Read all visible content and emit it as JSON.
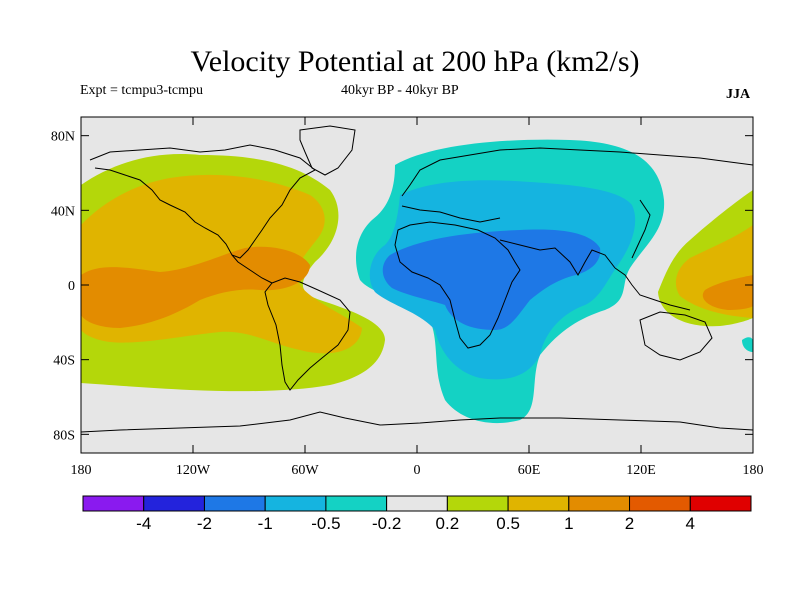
{
  "title": "Velocity Potential at 200 hPa (km2/s)",
  "subtitle_left": "Expt = tcmpu3-tcmpu",
  "subtitle_center": "40kyr BP - 40kyr BP",
  "season": "JJA",
  "map": {
    "lon_range": [
      -180,
      180
    ],
    "lat_range": [
      -90,
      90
    ],
    "background_color": "#e6e6e6",
    "lat_ticks": [
      {
        "lat": 80,
        "label": "80N"
      },
      {
        "lat": 40,
        "label": "40N"
      },
      {
        "lat": 0,
        "label": "0"
      },
      {
        "lat": -40,
        "label": "40S"
      },
      {
        "lat": -80,
        "label": "80S"
      }
    ],
    "lon_ticks": [
      {
        "lon": -180,
        "label": "180"
      },
      {
        "lon": -120,
        "label": "120W"
      },
      {
        "lon": -60,
        "label": "60W"
      },
      {
        "lon": 0,
        "label": "0"
      },
      {
        "lon": 60,
        "label": "60E"
      },
      {
        "lon": 120,
        "label": "120E"
      },
      {
        "lon": 180,
        "label": "180"
      }
    ]
  },
  "colorbar": {
    "colors": [
      "#8a1aef",
      "#2323dc",
      "#1e78e6",
      "#15b4e0",
      "#14d2c4",
      "#e6e6e6",
      "#b4d70a",
      "#e0b400",
      "#e38c00",
      "#e35a00",
      "#e00000"
    ],
    "labels": [
      "-4",
      "-2",
      "-1",
      "-0.5",
      "-0.2",
      "0.2",
      "0.5",
      "1",
      "2",
      "4"
    ]
  }
}
